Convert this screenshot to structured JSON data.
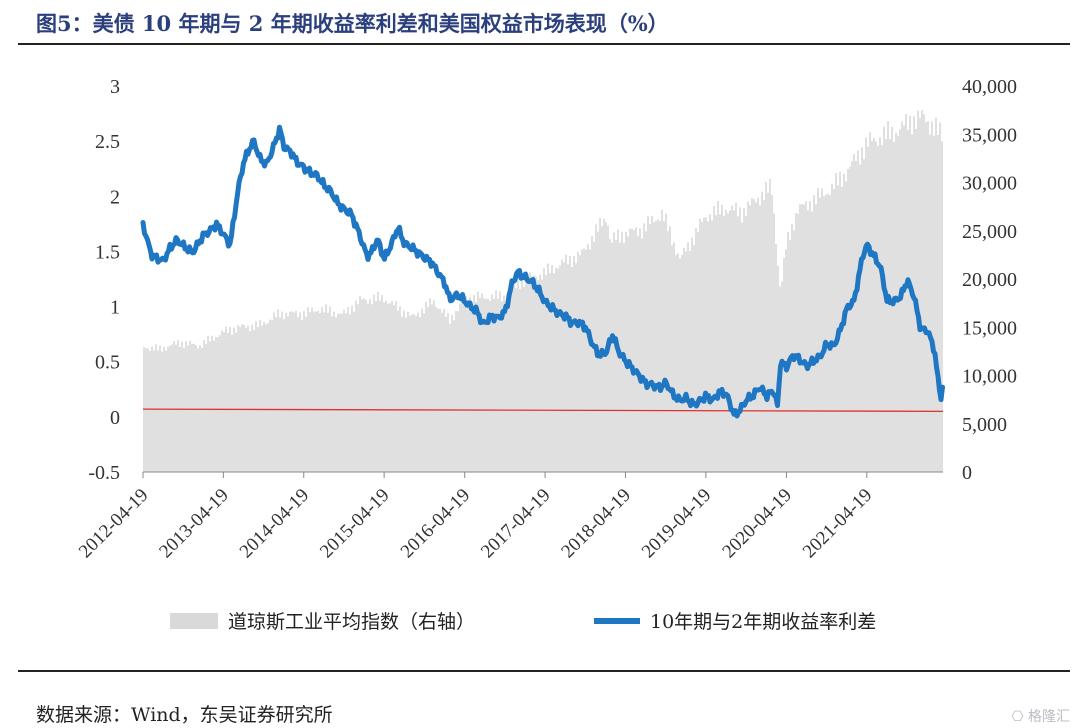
{
  "page": {
    "title": "图5：美债 10 年期与 2 年期收益率利差和美国权益市场表现（%）",
    "source": "数据来源：Wind，东吴证券研究所",
    "watermark": "格隆汇",
    "watermark_icon": "glh-logo-icon"
  },
  "chart_data": {
    "type": "line",
    "title": "美债 10 年期与 2 年期收益率利差和美国权益市场表现（%）",
    "xlabel": "",
    "ylabel": "",
    "x_ticks": [
      "2012-04-19",
      "2013-04-19",
      "2014-04-19",
      "2015-04-19",
      "2016-04-19",
      "2017-04-19",
      "2018-04-19",
      "2019-04-19",
      "2020-04-19",
      "2021-04-19"
    ],
    "x_range": [
      "2012-04-19",
      "2022-03-31"
    ],
    "left_axis": {
      "ylim": [
        -0.5,
        3
      ],
      "ticks": [
        "-0.5",
        "0",
        "0.5",
        "1",
        "1.5",
        "2",
        "2.5",
        "3"
      ]
    },
    "right_axis": {
      "ylim": [
        0,
        40000
      ],
      "ticks": [
        "0",
        "5,000",
        "10,000",
        "15,000",
        "20,000",
        "25,000",
        "30,000",
        "35,000",
        "40,000"
      ]
    },
    "grid": false,
    "legend_position": "bottom",
    "colors": {
      "spread": "#1f77c4",
      "dow": "#d9d9d9",
      "zero_line": "#e03030"
    },
    "series": [
      {
        "name": "道琼斯工业平均指数（右轴）",
        "type": "area",
        "axis": "right",
        "x": [
          "2012-04-19",
          "2012-07-01",
          "2012-10-01",
          "2013-01-01",
          "2013-04-19",
          "2013-07-01",
          "2013-10-01",
          "2014-01-01",
          "2014-04-19",
          "2014-07-01",
          "2014-10-15",
          "2015-01-01",
          "2015-04-19",
          "2015-08-25",
          "2015-12-01",
          "2016-02-11",
          "2016-04-19",
          "2016-07-01",
          "2016-11-01",
          "2017-01-01",
          "2017-04-19",
          "2017-07-01",
          "2017-10-01",
          "2018-01-26",
          "2018-02-09",
          "2018-04-19",
          "2018-07-01",
          "2018-10-03",
          "2018-12-24",
          "2019-04-19",
          "2019-07-15",
          "2019-10-01",
          "2020-01-02",
          "2020-02-12",
          "2020-03-23",
          "2020-04-19",
          "2020-06-08",
          "2020-09-01",
          "2020-11-15",
          "2021-01-01",
          "2021-04-19",
          "2021-07-01",
          "2021-09-01",
          "2021-11-08",
          "2022-01-04",
          "2022-03-31"
        ],
        "values": [
          13000,
          12700,
          13400,
          13100,
          14500,
          15000,
          15200,
          16400,
          16400,
          16900,
          16300,
          17800,
          18000,
          16000,
          17700,
          15700,
          17900,
          18100,
          18200,
          19800,
          20600,
          21600,
          22500,
          26600,
          23900,
          24700,
          25100,
          26800,
          22000,
          26500,
          27300,
          26900,
          28800,
          29500,
          18600,
          23600,
          27100,
          28300,
          29500,
          30600,
          34000,
          34800,
          35300,
          36400,
          36800,
          34700
        ]
      },
      {
        "name": "10年期与2年期收益率利差",
        "type": "line",
        "axis": "left",
        "x": [
          "2012-04-19",
          "2012-05-15",
          "2012-06-01",
          "2012-07-20",
          "2012-08-20",
          "2012-09-20",
          "2012-10-20",
          "2012-12-01",
          "2013-01-15",
          "2013-02-20",
          "2013-03-20",
          "2013-04-19",
          "2013-05-20",
          "2013-06-25",
          "2013-07-20",
          "2013-08-20",
          "2013-09-05",
          "2013-10-01",
          "2013-11-01",
          "2013-12-01",
          "2013-12-31",
          "2014-01-20",
          "2014-02-20",
          "2014-03-20",
          "2014-04-19",
          "2014-05-20",
          "2014-06-20",
          "2014-07-20",
          "2014-08-20",
          "2014-09-20",
          "2014-10-15",
          "2014-11-20",
          "2014-12-20",
          "2015-01-31",
          "2015-02-20",
          "2015-03-20",
          "2015-04-19",
          "2015-05-20",
          "2015-06-20",
          "2015-07-20",
          "2015-08-20",
          "2015-09-20",
          "2015-10-20",
          "2015-11-20",
          "2015-12-20",
          "2016-01-20",
          "2016-02-11",
          "2016-03-20",
          "2016-04-19",
          "2016-05-20",
          "2016-06-20",
          "2016-07-08",
          "2016-08-20",
          "2016-09-20",
          "2016-10-20",
          "2016-11-20",
          "2016-12-15",
          "2017-01-20",
          "2017-02-20",
          "2017-03-20",
          "2017-04-19",
          "2017-05-20",
          "2017-06-20",
          "2017-07-20",
          "2017-08-20",
          "2017-09-20",
          "2017-10-20",
          "2017-11-20",
          "2017-12-20",
          "2018-01-20",
          "2018-02-20",
          "2018-03-20",
          "2018-04-19",
          "2018-05-20",
          "2018-06-20",
          "2018-07-20",
          "2018-08-20",
          "2018-09-20",
          "2018-10-20",
          "2018-11-20",
          "2018-12-20",
          "2019-01-20",
          "2019-02-20",
          "2019-03-20",
          "2019-04-19",
          "2019-05-20",
          "2019-06-20",
          "2019-07-20",
          "2019-08-27",
          "2019-09-20",
          "2019-10-20",
          "2019-11-20",
          "2019-12-20",
          "2020-01-20",
          "2020-02-20",
          "2020-03-10",
          "2020-03-23",
          "2020-04-19",
          "2020-05-20",
          "2020-06-10",
          "2020-07-20",
          "2020-08-20",
          "2020-09-20",
          "2020-10-20",
          "2020-11-20",
          "2020-12-20",
          "2021-01-20",
          "2021-02-20",
          "2021-03-31",
          "2021-04-19",
          "2021-05-20",
          "2021-06-20",
          "2021-07-20",
          "2021-08-20",
          "2021-09-20",
          "2021-10-20",
          "2021-11-20",
          "2021-12-20",
          "2022-01-20",
          "2022-02-20",
          "2022-03-10",
          "2022-03-20",
          "2022-03-25",
          "2022-03-31"
        ],
        "values": [
          1.75,
          1.55,
          1.45,
          1.4,
          1.52,
          1.6,
          1.55,
          1.5,
          1.65,
          1.7,
          1.75,
          1.65,
          1.55,
          2.05,
          2.3,
          2.45,
          2.5,
          2.35,
          2.3,
          2.45,
          2.62,
          2.45,
          2.4,
          2.3,
          2.25,
          2.2,
          2.18,
          2.1,
          2.05,
          1.95,
          1.9,
          1.85,
          1.7,
          1.45,
          1.48,
          1.6,
          1.42,
          1.55,
          1.72,
          1.58,
          1.55,
          1.5,
          1.45,
          1.4,
          1.3,
          1.2,
          1.05,
          1.1,
          1.05,
          1.0,
          0.95,
          0.85,
          0.92,
          0.9,
          0.95,
          1.2,
          1.3,
          1.25,
          1.22,
          1.15,
          1.05,
          1.0,
          0.95,
          0.92,
          0.85,
          0.85,
          0.8,
          0.65,
          0.55,
          0.58,
          0.75,
          0.6,
          0.52,
          0.45,
          0.38,
          0.3,
          0.28,
          0.25,
          0.3,
          0.2,
          0.15,
          0.18,
          0.12,
          0.15,
          0.2,
          0.15,
          0.22,
          0.2,
          0.0,
          0.05,
          0.15,
          0.2,
          0.28,
          0.2,
          0.25,
          0.1,
          0.5,
          0.45,
          0.55,
          0.52,
          0.45,
          0.5,
          0.55,
          0.67,
          0.65,
          0.8,
          1.0,
          1.05,
          1.45,
          1.55,
          1.45,
          1.35,
          1.05,
          1.05,
          1.1,
          1.25,
          1.1,
          0.8,
          0.78,
          0.6,
          0.3,
          0.2,
          0.1,
          0.35
        ]
      },
      {
        "name": "zero-line",
        "type": "line",
        "axis": "left",
        "x": [
          "2012-04-19",
          "2022-03-31"
        ],
        "values": [
          0.07,
          0.05
        ]
      }
    ]
  }
}
